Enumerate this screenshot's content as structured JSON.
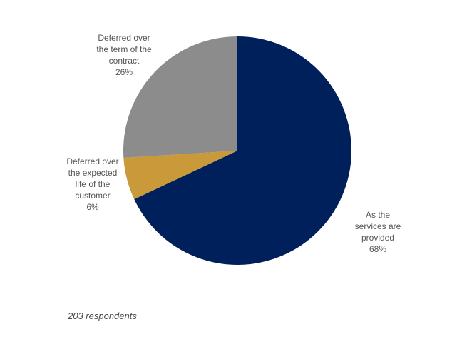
{
  "chart_data": {
    "type": "pie",
    "slices": [
      {
        "label_lines": [
          "As the",
          "services are",
          "provided",
          "68%"
        ],
        "value": 68,
        "color": "#00205b"
      },
      {
        "label_lines": [
          "Deferred over",
          "the expected",
          "life of the",
          "customer",
          "6%"
        ],
        "value": 6,
        "color": "#c9993a"
      },
      {
        "label_lines": [
          "Deferred over",
          "the term of the",
          "contract",
          "26%"
        ],
        "value": 26,
        "color": "#8c8c8c"
      }
    ],
    "legend": "none"
  },
  "footnote": "203 respondents"
}
